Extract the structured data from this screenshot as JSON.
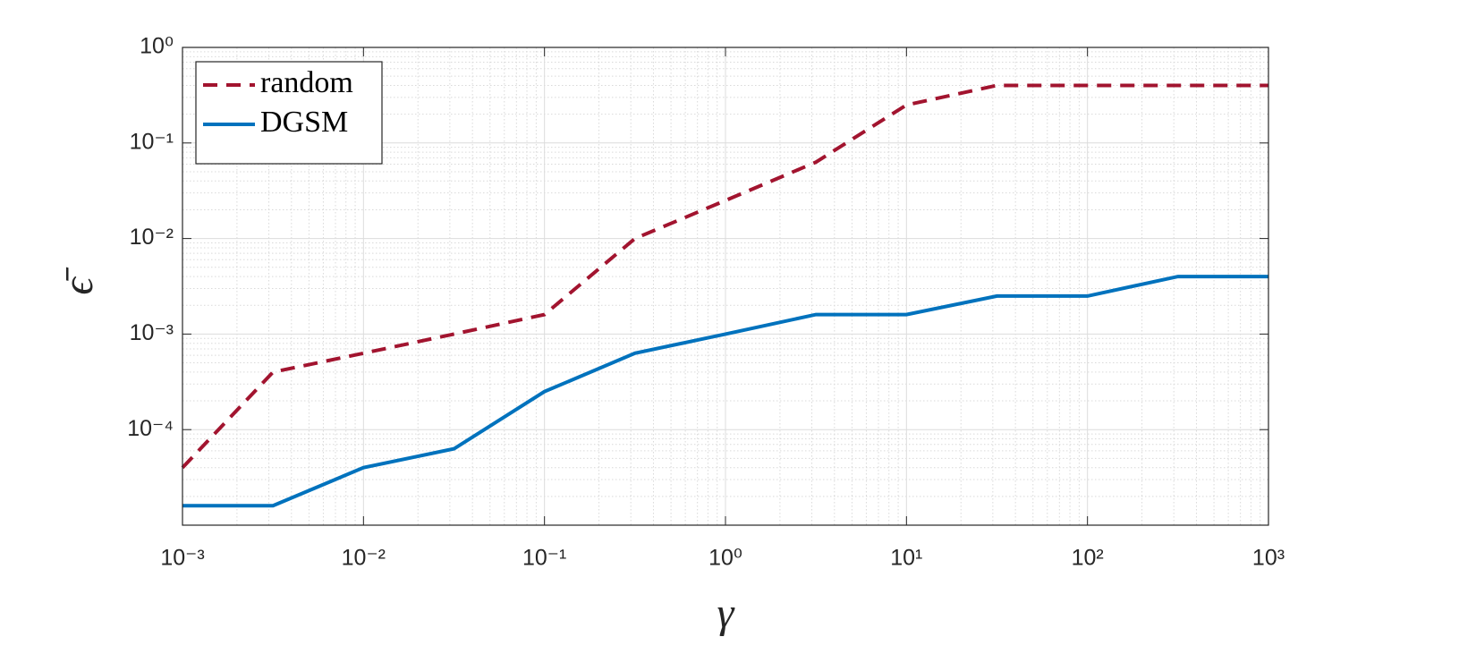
{
  "chart_data": {
    "type": "line",
    "x_label": "γ",
    "y_label": "ϵ̄",
    "x": [
      0.001,
      0.0031623,
      0.01,
      0.031623,
      0.1,
      0.31623,
      1,
      3.1623,
      10,
      31.623,
      100,
      316.23,
      1000
    ],
    "series": [
      {
        "name": "random",
        "color": "#a2142f",
        "dash": "dashed",
        "values": [
          4e-05,
          0.0004,
          0.00063,
          0.001,
          0.0016,
          0.01,
          0.025,
          0.063,
          0.25,
          0.4,
          0.4,
          0.4,
          0.4
        ]
      },
      {
        "name": "DGSM",
        "color": "#0072bd",
        "dash": "solid",
        "values": [
          1.6e-05,
          1.6e-05,
          4e-05,
          6.3e-05,
          0.00025,
          0.00063,
          0.001,
          0.0016,
          0.0016,
          0.0025,
          0.0025,
          0.004,
          0.004
        ]
      }
    ],
    "xscale": "log",
    "yscale": "log",
    "xlim": [
      0.001,
      1000
    ],
    "ylim": [
      1e-05,
      1
    ],
    "xticks": [
      {
        "value": 0.001,
        "label": "10⁻³"
      },
      {
        "value": 0.01,
        "label": "10⁻²"
      },
      {
        "value": 0.1,
        "label": "10⁻¹"
      },
      {
        "value": 1,
        "label": "10⁰"
      },
      {
        "value": 10,
        "label": "10¹"
      },
      {
        "value": 100,
        "label": "10²"
      },
      {
        "value": 1000,
        "label": "10³"
      }
    ],
    "yticks": [
      {
        "value": 0.0001,
        "label": "10⁻⁴"
      },
      {
        "value": 0.001,
        "label": "10⁻³"
      },
      {
        "value": 0.01,
        "label": "10⁻²"
      },
      {
        "value": 0.1,
        "label": "10⁻¹"
      },
      {
        "value": 1,
        "label": "10⁰"
      }
    ],
    "grid": true,
    "minor_grid": true,
    "legend": "northwest"
  }
}
